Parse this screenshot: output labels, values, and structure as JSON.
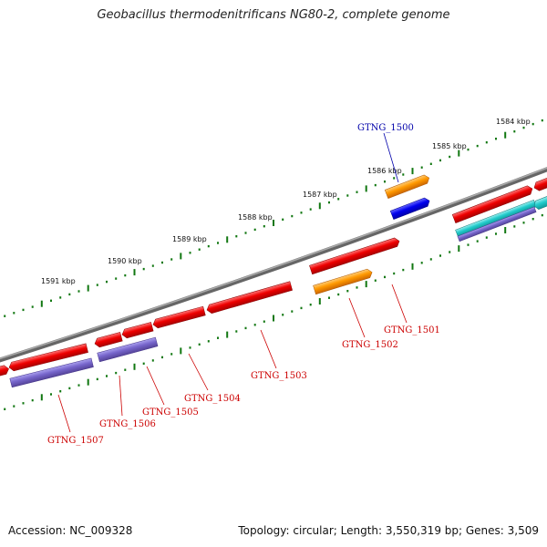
{
  "title": "Geobacillus thermodenitrificans NG80-2, complete genome",
  "footer": {
    "accession": "Accession: NC_009328",
    "summary": "Topology: circular; Length: 3,550,319 bp; Genes: 3,509"
  },
  "colors": {
    "backbone": "#808080",
    "gene_red": "#ee0000",
    "gene_orange": "#ff9900",
    "gene_blue": "#0000ee",
    "gene_purple": "#7766cc",
    "gene_cyan": "#22cccc",
    "tick_green": "#117711",
    "label_red": "#cc0000",
    "label_blue": "#0000aa"
  },
  "kbp_labels": [
    "1584 kbp",
    "1585 kbp",
    "1586 kbp",
    "1587 kbp",
    "1588 kbp",
    "1589 kbp",
    "1590 kbp",
    "1591 kbp"
  ],
  "gene_labels": [
    {
      "text": "GTNG_1500",
      "color": "blue"
    },
    {
      "text": "GTNG_1501",
      "color": "red"
    },
    {
      "text": "GTNG_1502",
      "color": "red"
    },
    {
      "text": "GTNG_1503",
      "color": "red"
    },
    {
      "text": "GTNG_1504",
      "color": "red"
    },
    {
      "text": "GTNG_1505",
      "color": "red"
    },
    {
      "text": "GTNG_1506",
      "color": "red"
    },
    {
      "text": "GTNG_1507",
      "color": "red"
    }
  ]
}
